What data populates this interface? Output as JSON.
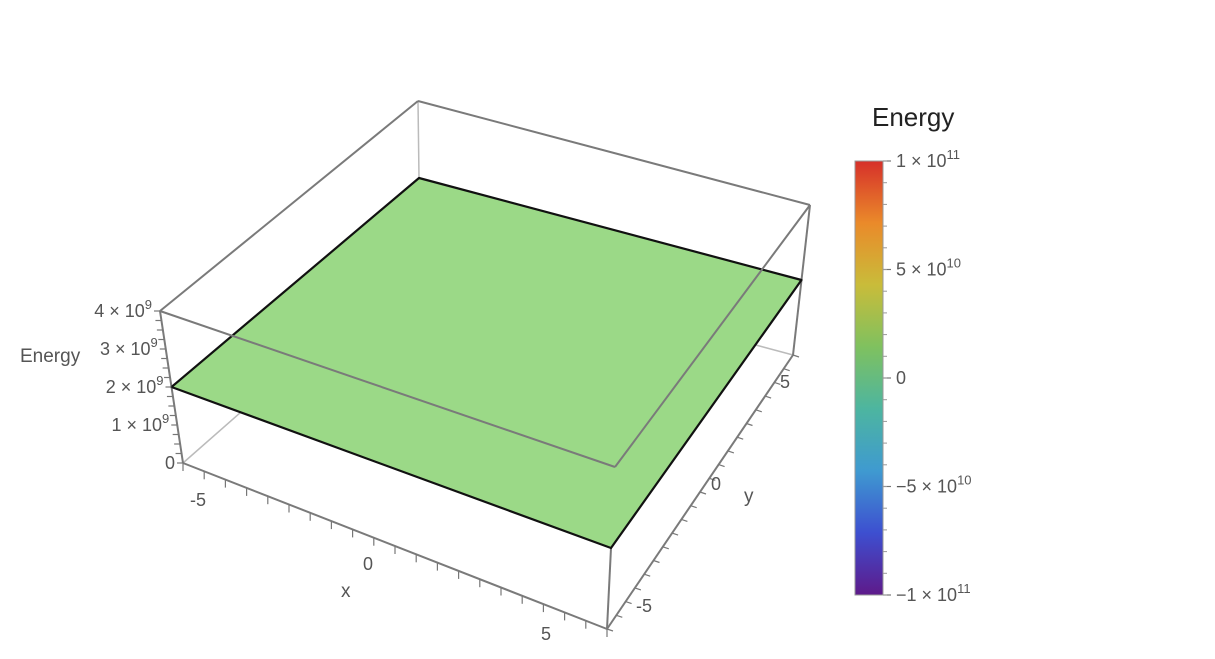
{
  "chart_data": {
    "type": "surface3d",
    "description_visible": "flat plane plotted in a 3D box",
    "x_axis": {
      "label": "x",
      "ticks": [
        "-5",
        "0",
        "5"
      ]
    },
    "y_axis": {
      "label": "y",
      "ticks": [
        "-5",
        "0",
        "5"
      ]
    },
    "z_axis": {
      "label": "Energy",
      "ticks": [
        {
          "value": 0,
          "base": "0",
          "exp": ""
        },
        {
          "value": 1000000000,
          "base": "1 × 10",
          "exp": "9"
        },
        {
          "value": 2000000000,
          "base": "2 × 10",
          "exp": "9"
        },
        {
          "value": 3000000000,
          "base": "3 × 10",
          "exp": "9"
        },
        {
          "value": 4000000000,
          "base": "4 × 10",
          "exp": "9"
        }
      ]
    },
    "surface": {
      "z_value": 2000000000,
      "color": "#9bd987",
      "edge_color": "#111111"
    },
    "legend": {
      "title": "Energy",
      "placement": "right",
      "range": [
        -100000000000,
        100000000000
      ],
      "ticks": [
        {
          "value": 100000000000,
          "base": "1 × 10",
          "exp": "11"
        },
        {
          "value": 50000000000,
          "base": "5 × 10",
          "exp": "10"
        },
        {
          "value": 0,
          "base": "0",
          "exp": ""
        },
        {
          "value": -50000000000,
          "base": "−5 × 10",
          "exp": "10"
        },
        {
          "value": -100000000000,
          "base": "−1 × 10",
          "exp": "11"
        }
      ],
      "gradient": [
        "#5e1a8a",
        "#3d4fd0",
        "#3f9ad0",
        "#4db5a0",
        "#7fc15f",
        "#c9bc3a",
        "#ea8a2a",
        "#d6302a"
      ]
    }
  }
}
